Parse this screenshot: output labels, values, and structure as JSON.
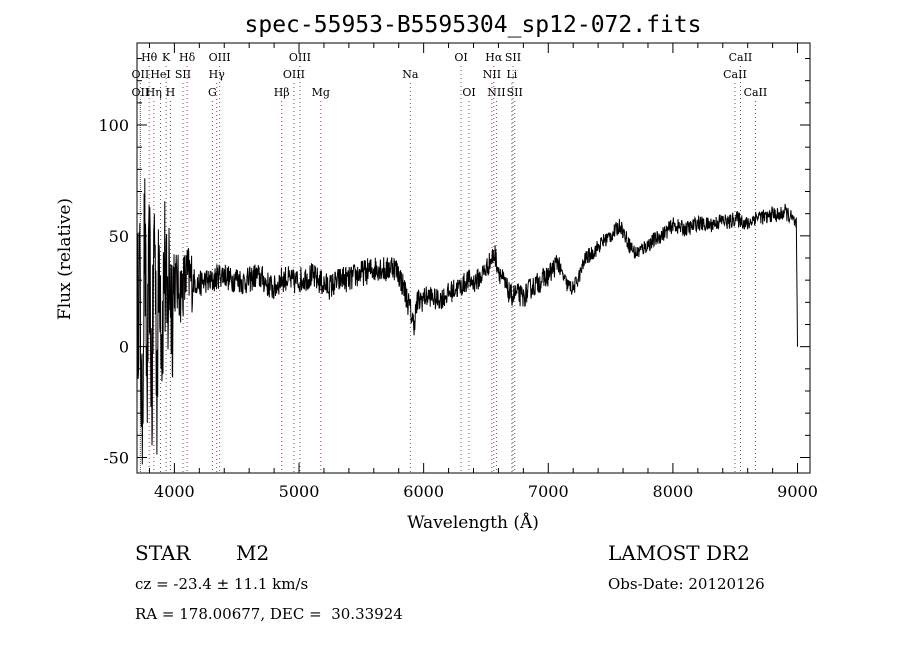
{
  "chart_data": {
    "type": "line",
    "title": "spec-55953-B5595304_sp12-072.fits",
    "xlabel": "Wavelength (Å)",
    "ylabel": "Flux (relative)",
    "xlim": [
      3700,
      9100
    ],
    "ylim": [
      -57,
      137
    ],
    "xticks": [
      4000,
      5000,
      6000,
      7000,
      8000,
      9000
    ],
    "xtick_labels": [
      "4000",
      "5000",
      "6000",
      "7000",
      "8000",
      "9000"
    ],
    "yticks": [
      -50,
      0,
      50,
      100
    ],
    "ytick_labels": [
      "-50",
      "0",
      "50",
      "100"
    ],
    "series": [
      {
        "x": [
          3700,
          3720,
          3740,
          3760,
          3780,
          3800,
          3820,
          3840,
          3860,
          3880,
          3900,
          3920,
          3940,
          3960,
          3980,
          4000,
          4050,
          4100,
          4150,
          4200,
          4250,
          4300,
          4350,
          4400,
          4450,
          4500,
          4550,
          4600,
          4650,
          4700,
          4750,
          4800,
          4850,
          4900,
          4950,
          5000,
          5050,
          5100,
          5150,
          5200,
          5250,
          5300,
          5350,
          5400,
          5450,
          5500,
          5550,
          5600,
          5650,
          5700,
          5750,
          5800,
          5850,
          5900,
          5920,
          5950,
          6000,
          6050,
          6100,
          6150,
          6200,
          6250,
          6300,
          6350,
          6400,
          6450,
          6500,
          6550,
          6570,
          6600,
          6650,
          6700,
          6750,
          6800,
          6850,
          6900,
          6950,
          7000,
          7050,
          7080,
          7100,
          7150,
          7200,
          7250,
          7300,
          7350,
          7400,
          7450,
          7500,
          7550,
          7580,
          7600,
          7650,
          7700,
          7750,
          7800,
          7850,
          7900,
          7950,
          8000,
          8050,
          8100,
          8150,
          8200,
          8250,
          8300,
          8350,
          8400,
          8450,
          8500,
          8550,
          8600,
          8650,
          8700,
          8750,
          8800,
          8850,
          8900,
          8950,
          8990,
          9000
        ],
        "y": [
          10,
          35,
          -40,
          55,
          -20,
          40,
          -25,
          60,
          -15,
          45,
          5,
          40,
          10,
          35,
          20,
          30,
          25,
          32,
          30,
          28,
          30,
          29,
          32,
          33,
          30,
          31,
          29,
          30,
          32,
          31,
          28,
          26,
          30,
          31,
          29,
          30,
          31,
          32,
          30,
          28,
          27,
          29,
          31,
          30,
          32,
          33,
          34,
          35,
          36,
          34,
          37,
          33,
          25,
          15,
          10,
          20,
          22,
          23,
          21,
          22,
          24,
          26,
          27,
          30,
          29,
          31,
          35,
          40,
          42,
          35,
          28,
          23,
          24,
          22,
          26,
          28,
          30,
          32,
          36,
          39,
          34,
          28,
          26,
          32,
          40,
          42,
          45,
          48,
          50,
          53,
          55,
          52,
          46,
          42,
          44,
          46,
          48,
          50,
          52,
          55,
          54,
          53,
          54,
          56,
          55,
          55,
          56,
          57,
          56,
          58,
          57,
          55,
          58,
          59,
          58,
          60,
          59,
          61,
          58,
          55,
          0
        ],
        "name": ""
      }
    ],
    "spectral_lines": [
      {
        "label": "Hθ",
        "x": 3798,
        "row": 1,
        "color": "#5a5a5a"
      },
      {
        "label": "K",
        "x": 3934,
        "row": 1,
        "color": "#5a5a5a"
      },
      {
        "label": "Hδ",
        "x": 4102,
        "row": 1,
        "color": "#c03030"
      },
      {
        "label": "OIII",
        "x": 4363,
        "row": 1,
        "color": "#5a5a5a"
      },
      {
        "label": "OIII",
        "x": 5007,
        "row": 1,
        "color": "#5a5a5a"
      },
      {
        "label": "OI",
        "x": 6300,
        "row": 1,
        "color": "#5a5a5a"
      },
      {
        "label": "Hα",
        "x": 6563,
        "row": 1,
        "color": "#c03030"
      },
      {
        "label": "SII",
        "x": 6717,
        "row": 1,
        "color": "#5a5a5a"
      },
      {
        "label": "CaII",
        "x": 8542,
        "row": 1,
        "color": "#5a5a5a"
      },
      {
        "label": "OII",
        "x": 3727,
        "row": 2,
        "color": "#5a5a5a"
      },
      {
        "label": "HeI",
        "x": 3889,
        "row": 2,
        "color": "#5a5a5a"
      },
      {
        "label": "SII",
        "x": 4069,
        "row": 2,
        "color": "#5a5a5a"
      },
      {
        "label": "Hγ",
        "x": 4340,
        "row": 2,
        "color": "#c03030"
      },
      {
        "label": "OIII",
        "x": 4959,
        "row": 2,
        "color": "#5a5a5a"
      },
      {
        "label": "Na",
        "x": 5893,
        "row": 2,
        "color": "#5a5a5a"
      },
      {
        "label": "NII",
        "x": 6548,
        "row": 2,
        "color": "#5a5a5a"
      },
      {
        "label": "Li",
        "x": 6708,
        "row": 2,
        "color": "#5a5a5a"
      },
      {
        "label": "CaII",
        "x": 8498,
        "row": 2,
        "color": "#5a5a5a"
      },
      {
        "label": "OII",
        "x": 3727,
        "row": 3,
        "color": "#5a5a5a"
      },
      {
        "label": "Hη",
        "x": 3835,
        "row": 3,
        "color": "#c03030"
      },
      {
        "label": "H",
        "x": 3968,
        "row": 3,
        "color": "#5a5a5a"
      },
      {
        "label": "G",
        "x": 4305,
        "row": 3,
        "color": "#5a5a5a"
      },
      {
        "label": "Hβ",
        "x": 4861,
        "row": 3,
        "color": "#c03030"
      },
      {
        "label": "Mg",
        "x": 5175,
        "row": 3,
        "color": "#c03030"
      },
      {
        "label": "OI",
        "x": 6364,
        "row": 3,
        "color": "#5a5a5a"
      },
      {
        "label": "NII",
        "x": 6584,
        "row": 3,
        "color": "#5a5a5a"
      },
      {
        "label": "SII",
        "x": 6731,
        "row": 3,
        "color": "#5a5a5a"
      },
      {
        "label": "CaII",
        "x": 8662,
        "row": 3,
        "color": "#5a5a5a"
      }
    ],
    "grid": false
  },
  "info": {
    "object_type": "STAR",
    "subclass": "M2",
    "survey": "LAMOST DR2",
    "redshift_line": "cz = -23.4 ± 11.1 km/s",
    "obs_date_line": "Obs-Date: 20120126",
    "coords_line": "RA = 178.00677, DEC =  30.33924"
  }
}
